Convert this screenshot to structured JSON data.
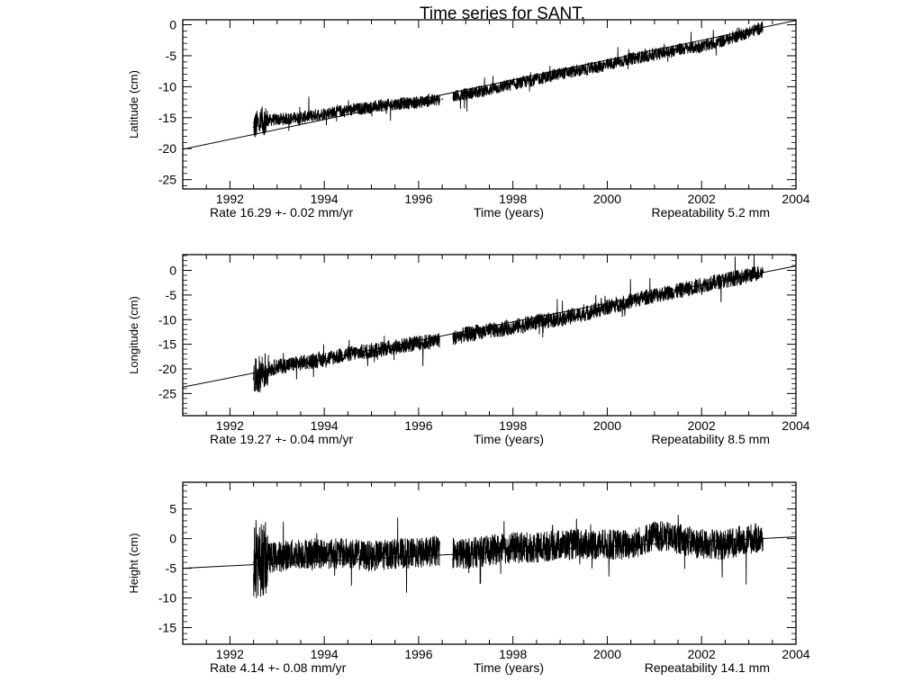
{
  "chart_data": {
    "type": "line",
    "title": "Time series for SANT.",
    "panels": [
      {
        "ylabel": "Latitude (cm)",
        "xlabel": "Time (years)",
        "xlim": [
          1991.0,
          2004.0
        ],
        "ylim": [
          -26.5,
          0.8
        ],
        "xticks": [
          "1992",
          "1994",
          "1996",
          "1998",
          "2000",
          "2002",
          "2004"
        ],
        "yticks": [
          "0",
          "-5",
          "-10",
          "-15",
          "-20",
          "-25"
        ],
        "rate_text": "Rate  16.29 +- 0.02 mm/yr",
        "repeatability_text": "Repeatability 5.2 mm",
        "trend_line": {
          "x": [
            1991.0,
            2004.0
          ],
          "y": [
            -20.1,
            0.7
          ]
        },
        "series": [
          {
            "x": [
              1992.5,
              1992.7,
              1993.0,
              1993.5,
              1994.0,
              1994.5,
              1995.0,
              1995.5,
              1996.0,
              1996.5,
              1997.0,
              1997.5,
              1998.0,
              1998.5,
              1999.0,
              1999.5,
              2000.0,
              2000.5,
              2001.0,
              2001.5,
              2002.0,
              2002.5,
              2003.0,
              2003.3
            ],
            "y": [
              -16.5,
              -15.5,
              -15.3,
              -15.0,
              -14.3,
              -13.8,
              -13.3,
              -12.8,
              -12.5,
              -12.0,
              -11.2,
              -10.5,
              -9.6,
              -8.8,
              -7.9,
              -7.3,
              -6.5,
              -5.5,
              -4.8,
              -4.0,
              -3.5,
              -2.5,
              -1.2,
              -0.4
            ]
          }
        ]
      },
      {
        "ylabel": "Longitude (cm)",
        "xlabel": "Time (years)",
        "xlim": [
          1991.0,
          2004.0
        ],
        "ylim": [
          -29.5,
          3.2
        ],
        "xticks": [
          "1992",
          "1994",
          "1996",
          "1998",
          "2000",
          "2002",
          "2004"
        ],
        "yticks": [
          "0",
          "-5",
          "-10",
          "-15",
          "-20",
          "-25"
        ],
        "rate_text": "Rate  19.27 +- 0.04 mm/yr",
        "repeatability_text": "Repeatability 8.5 mm",
        "trend_line": {
          "x": [
            1991.0,
            2004.0
          ],
          "y": [
            -23.7,
            0.9
          ]
        },
        "series": [
          {
            "x": [
              1992.5,
              1992.7,
              1993.0,
              1993.5,
              1994.0,
              1994.5,
              1995.0,
              1995.5,
              1996.0,
              1996.4,
              1996.8,
              1997.0,
              1997.5,
              1998.0,
              1998.5,
              1999.0,
              1999.5,
              2000.0,
              2000.5,
              2001.0,
              2001.5,
              2002.0,
              2002.5,
              2003.0,
              2003.3
            ],
            "y": [
              -22.0,
              -20.5,
              -19.5,
              -18.8,
              -18.0,
              -17.0,
              -16.3,
              -15.5,
              -14.8,
              -14.2,
              -13.6,
              -13.0,
              -12.3,
              -11.5,
              -10.5,
              -9.8,
              -8.8,
              -7.5,
              -6.2,
              -5.0,
              -4.2,
              -3.0,
              -2.0,
              -1.0,
              -0.3
            ]
          }
        ]
      },
      {
        "ylabel": "Height (cm)",
        "xlabel": "Time (years)",
        "xlim": [
          1991.0,
          2004.0
        ],
        "ylim": [
          -17.8,
          9.5
        ],
        "xticks": [
          "1992",
          "1994",
          "1996",
          "1998",
          "2000",
          "2002",
          "2004"
        ],
        "yticks": [
          "5",
          "0",
          "-5",
          "-10",
          "-15"
        ],
        "rate_text": "Rate   4.14 +- 0.08 mm/yr",
        "repeatability_text": "Repeatability 14.1 mm",
        "trend_line": {
          "x": [
            1991.0,
            2004.0
          ],
          "y": [
            -5.0,
            0.3
          ]
        },
        "series": [
          {
            "x": [
              1992.5,
              1992.7,
              1993.0,
              1993.5,
              1994.0,
              1994.5,
              1995.0,
              1995.5,
              1996.0,
              1996.4,
              1996.8,
              1997.0,
              1997.5,
              1998.0,
              1998.5,
              1999.0,
              1999.5,
              2000.0,
              2000.5,
              2001.0,
              2001.5,
              2002.0,
              2002.5,
              2003.0,
              2003.3
            ],
            "y": [
              -4.0,
              -3.5,
              -3.0,
              -2.5,
              -2.5,
              -2.5,
              -3.0,
              -2.5,
              -2.5,
              -2.0,
              -2.5,
              -2.5,
              -2.0,
              -1.5,
              -1.5,
              -1.0,
              -1.0,
              -1.0,
              -1.0,
              0.5,
              0.0,
              -1.0,
              -1.0,
              0.0,
              0.0
            ]
          }
        ]
      }
    ]
  }
}
